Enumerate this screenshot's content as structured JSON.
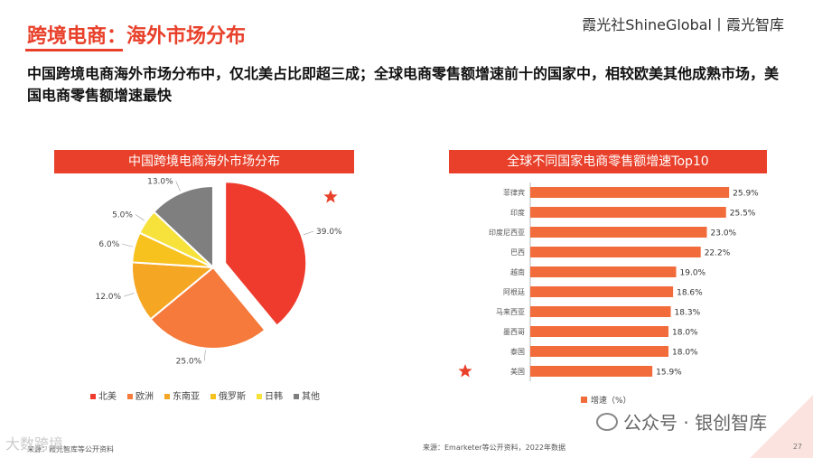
{
  "header": {
    "title": "跨境电商：海外市场分布",
    "brand": "霞光社ShineGlobal丨霞光智库",
    "subtitle": "中国跨境电商海外市场分布中，仅北美占比即超三成；全球电商零售额增速前十的国家中，相较欧美其他成熟市场，美国电商零售额增速最快"
  },
  "left_panel": {
    "header": "中国跨境电商海外市场分布",
    "source": "来源：霞光智库等公开资料"
  },
  "right_panel": {
    "header": "全球不同国家电商零售额增速Top10",
    "source": "来源：Emarketer等公开资料，2022年数据"
  },
  "colors": {
    "accent": "#e8402a",
    "bar": "#f26b3a",
    "star": "#e8402a"
  },
  "chart_data": [
    {
      "type": "pie",
      "title": "中国跨境电商海外市场分布",
      "categories": [
        "北美",
        "欧洲",
        "东南亚",
        "俄罗斯",
        "日韩",
        "其他"
      ],
      "values": [
        39.0,
        25.0,
        12.0,
        6.0,
        5.0,
        13.0
      ],
      "labels": [
        "39.0%",
        "25.0%",
        "12.0%",
        "6.0%",
        "5.0%",
        "13.0%"
      ],
      "colors": [
        "#ee3b2d",
        "#f57a3b",
        "#f5a623",
        "#f7c11e",
        "#f6e23a",
        "#7f7f7f"
      ],
      "highlight": "北美",
      "legend_position": "bottom"
    },
    {
      "type": "bar",
      "orientation": "horizontal",
      "title": "全球不同国家电商零售额增速Top10",
      "categories": [
        "菲律宾",
        "印度",
        "印度尼西亚",
        "巴西",
        "越南",
        "阿根廷",
        "马来西亚",
        "墨西哥",
        "泰国",
        "美国"
      ],
      "values": [
        25.9,
        25.5,
        23.0,
        22.2,
        19.0,
        18.6,
        18.3,
        18.0,
        18.0,
        15.9
      ],
      "labels": [
        "25.9%",
        "25.5%",
        "23.0%",
        "22.2%",
        "19.0%",
        "18.6%",
        "18.3%",
        "18.0%",
        "18.0%",
        "15.9%"
      ],
      "series_name": "增速（%）",
      "highlight": "美国",
      "xlim": [
        0,
        30
      ],
      "legend_position": "bottom"
    }
  ],
  "footer": {
    "watermark_left": "大数跨境",
    "watermark_right": "公众号 · 银创智库",
    "page": "27"
  }
}
